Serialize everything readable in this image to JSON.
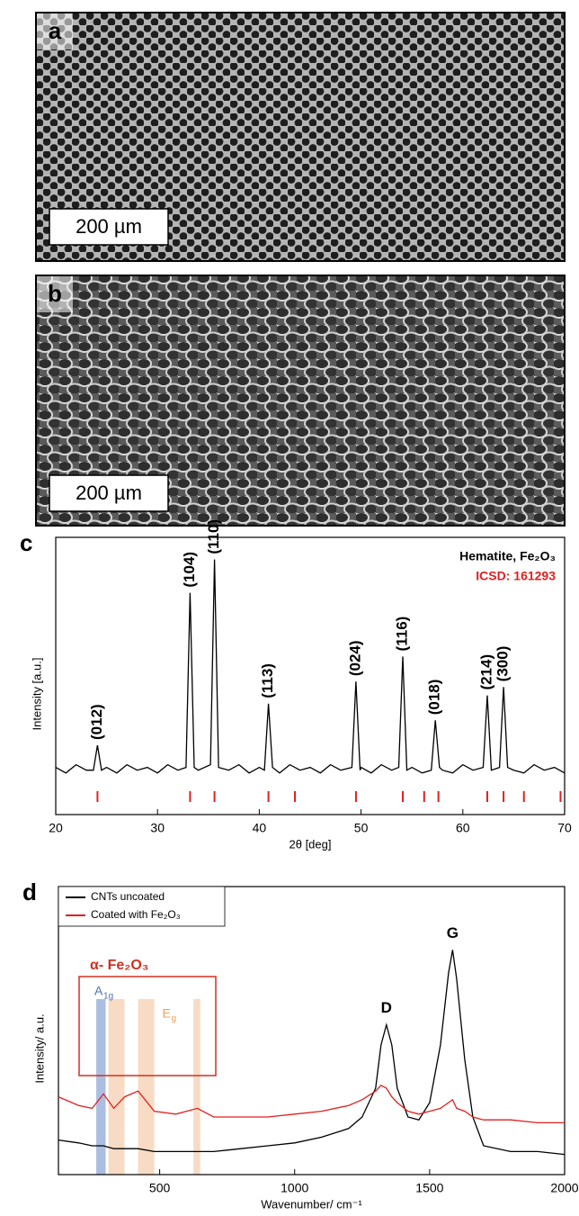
{
  "images": [
    {
      "label": "a",
      "scale_bar": "200 µm"
    },
    {
      "label": "b",
      "scale_bar": "200 µm"
    }
  ],
  "chart_data": [
    {
      "type": "line",
      "panel": "c",
      "xlabel": "2θ  [deg]",
      "ylabel": "Intensity [a.u.]",
      "xlim": [
        20,
        70
      ],
      "xticks": [
        20,
        30,
        40,
        50,
        60,
        70
      ],
      "ylim": [
        0,
        100
      ],
      "legend_lines": [
        {
          "text": "Hematite, Fe₂O₃",
          "color": "#000000"
        },
        {
          "text": "ICSD: 161293",
          "color": "#e02020"
        }
      ],
      "x": [
        20,
        21,
        22,
        23,
        23.7,
        24.1,
        24.5,
        25,
        26,
        27,
        28,
        29,
        30,
        31,
        32,
        32.8,
        33.2,
        33.6,
        34,
        35.2,
        35.6,
        36,
        37,
        38,
        39,
        40,
        40.5,
        40.9,
        41.3,
        42,
        43,
        44,
        45,
        46,
        47,
        48,
        49.1,
        49.5,
        49.9,
        50,
        51,
        52,
        53,
        53.7,
        54.1,
        54.5,
        55,
        56,
        56.9,
        57.3,
        57.7,
        58,
        59,
        60,
        61,
        62,
        62.4,
        62.8,
        63.6,
        64,
        64.4,
        65,
        66,
        67,
        68,
        69,
        70
      ],
      "series": [
        {
          "color": "#000000",
          "values": [
            17,
            15,
            18,
            16,
            16,
            25,
            16,
            17,
            15,
            18,
            16,
            17,
            15,
            18,
            16,
            17,
            80,
            17,
            16,
            18,
            92,
            17,
            16,
            18,
            15,
            17,
            16,
            40,
            17,
            15,
            18,
            16,
            17,
            15,
            18,
            16,
            17,
            48,
            16,
            17,
            15,
            18,
            16,
            17,
            57,
            16,
            17,
            15,
            16,
            34,
            17,
            16,
            15,
            18,
            16,
            17,
            43,
            16,
            17,
            46,
            17,
            16,
            15,
            18,
            16,
            17,
            15
          ]
        }
      ],
      "peak_labels": [
        {
          "text": "(012)",
          "x": 24.1
        },
        {
          "text": "(104)",
          "x": 33.2
        },
        {
          "text": "(110)",
          "x": 35.6
        },
        {
          "text": "(113)",
          "x": 40.9
        },
        {
          "text": "(024)",
          "x": 49.5
        },
        {
          "text": "(116)",
          "x": 54.1
        },
        {
          "text": "(018)",
          "x": 57.3
        },
        {
          "text": "(214)",
          "x": 62.4
        },
        {
          "text": "(300)",
          "x": 64
        }
      ],
      "reference_color": "#e02020",
      "reference_x": [
        24.1,
        33.2,
        35.6,
        40.9,
        43.5,
        49.5,
        54.1,
        56.2,
        57.6,
        62.4,
        64,
        66,
        69.6
      ]
    },
    {
      "type": "line",
      "panel": "d",
      "xlabel": "Wavenumber/ cm⁻¹",
      "ylabel": "Intensity/ a.u.",
      "xlim": [
        125,
        2000
      ],
      "xticks": [
        500,
        1000,
        1500,
        2000
      ],
      "ylim": [
        0,
        100
      ],
      "legend": "upper left",
      "x": [
        125,
        200,
        250,
        292,
        330,
        370,
        420,
        480,
        560,
        640,
        700,
        800,
        900,
        1000,
        1100,
        1200,
        1250,
        1300,
        1320,
        1340,
        1360,
        1380,
        1420,
        1460,
        1500,
        1540,
        1570,
        1585,
        1600,
        1630,
        1660,
        1700,
        1800,
        1900,
        2000
      ],
      "series": [
        {
          "name": "CNTs uncoated",
          "color": "#000000",
          "values": [
            12,
            11,
            10,
            10,
            9,
            9,
            9,
            8,
            8,
            8,
            8,
            9,
            10,
            11,
            13,
            16,
            20,
            30,
            45,
            52,
            45,
            30,
            20,
            19,
            25,
            45,
            70,
            78,
            68,
            40,
            20,
            10,
            8,
            8,
            7
          ]
        },
        {
          "name": "Coated with Fe₂O₃",
          "color": "#e02020",
          "values": [
            27,
            24,
            23,
            28,
            23,
            27,
            29,
            22,
            21,
            23,
            20,
            20,
            20,
            21,
            22,
            24,
            26,
            29,
            31,
            30,
            27,
            25,
            22,
            21,
            22,
            23,
            25,
            26,
            23,
            22,
            20,
            19,
            19,
            18,
            18
          ]
        }
      ],
      "peak_labels": [
        {
          "text": "D",
          "x": 1340
        },
        {
          "text": "G",
          "x": 1585
        }
      ],
      "box_label": "α- Fe₂O₃",
      "highlights": [
        {
          "label": "A",
          "sub": "1g",
          "color": "#8fa8d8",
          "ranges": [
            [
              265,
              300
            ]
          ]
        },
        {
          "label": "E",
          "sub": "g",
          "color": "#f5cfb0",
          "ranges": [
            [
              310,
              370
            ],
            [
              420,
              480
            ],
            [
              625,
              650
            ]
          ]
        }
      ]
    }
  ]
}
